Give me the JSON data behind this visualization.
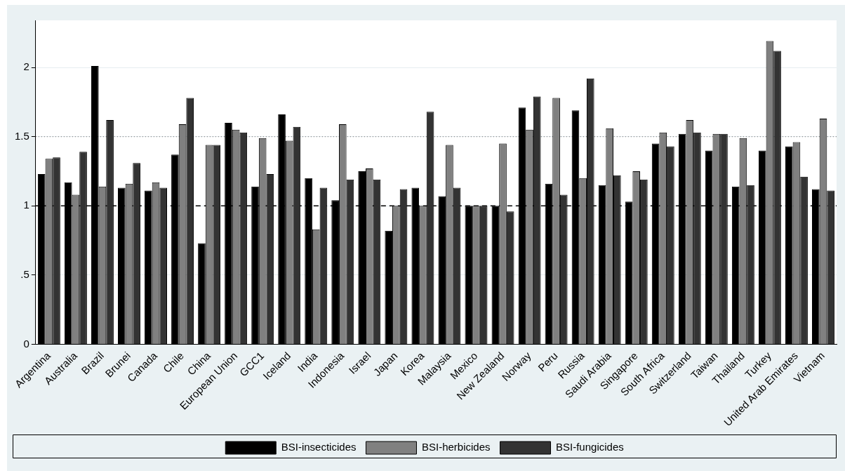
{
  "chart_data": {
    "type": "bar",
    "categories": [
      "Argentina",
      "Australia",
      "Brazil",
      "Brunei",
      "Canada",
      "Chile",
      "China",
      "European Union",
      "GCC1",
      "Iceland",
      "India",
      "Indonesia",
      "Israel",
      "Japan",
      "Korea",
      "Malaysia",
      "Mexico",
      "New Zealand",
      "Norway",
      "Peru",
      "Russia",
      "Saudi Arabia",
      "Singapore",
      "South Africa",
      "Switzerland",
      "Taiwan",
      "Thailand",
      "Turkey",
      "United Arab Emirates",
      "Vietnam"
    ],
    "series": [
      {
        "name": "BSI-insecticides",
        "color": "#000000",
        "values": [
          1.23,
          1.17,
          2.01,
          1.13,
          1.11,
          1.37,
          0.73,
          1.6,
          1.14,
          1.66,
          1.2,
          1.04,
          1.25,
          0.82,
          1.13,
          1.07,
          1.0,
          1.0,
          1.71,
          1.16,
          1.69,
          1.15,
          1.03,
          1.45,
          1.52,
          1.4,
          1.14,
          1.4,
          1.43,
          1.12
        ]
      },
      {
        "name": "BSI-herbicides",
        "color": "#808080",
        "values": [
          1.34,
          1.08,
          1.14,
          1.16,
          1.17,
          1.59,
          1.44,
          1.55,
          1.49,
          1.47,
          0.83,
          1.59,
          1.27,
          1.0,
          1.0,
          1.44,
          1.0,
          1.45,
          1.55,
          1.78,
          1.2,
          1.56,
          1.25,
          1.53,
          1.62,
          1.52,
          1.49,
          2.19,
          1.46,
          1.63
        ]
      },
      {
        "name": "BSI-fungicides",
        "color": "#333333",
        "values": [
          1.35,
          1.39,
          1.62,
          1.31,
          1.13,
          1.78,
          1.44,
          1.53,
          1.23,
          1.57,
          1.13,
          1.19,
          1.19,
          1.12,
          1.68,
          1.13,
          1.0,
          0.96,
          1.79,
          1.08,
          1.92,
          1.22,
          1.19,
          1.43,
          1.53,
          1.52,
          1.15,
          2.12,
          1.21,
          1.11
        ]
      }
    ],
    "ylim": [
      0,
      2.34
    ],
    "yticks": [
      0,
      {
        "value": 0.5,
        "label": ".5"
      },
      1,
      1.5,
      2
    ],
    "grid": "y",
    "ref_lines": [
      {
        "axis": "y",
        "value": 1,
        "color": "#000000",
        "line_style": "dashed"
      },
      {
        "axis": "y",
        "value": 1.5,
        "color": "#7f7f7f",
        "line_style": "dotted"
      }
    ],
    "legend": "bottom"
  }
}
